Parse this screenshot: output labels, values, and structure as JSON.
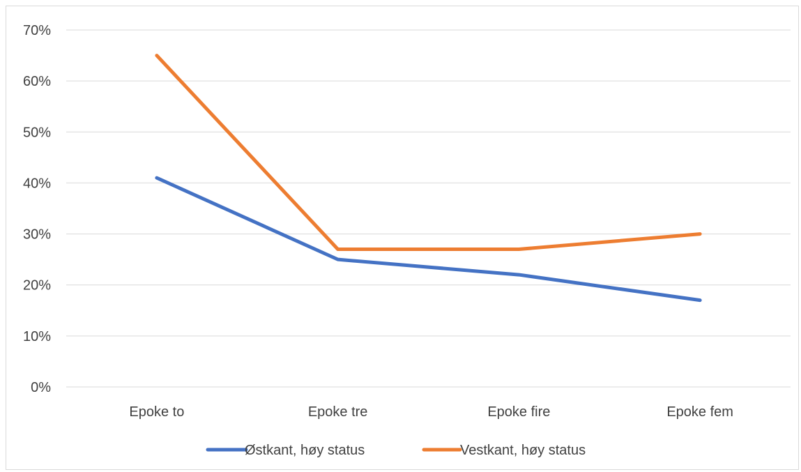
{
  "chart_data": {
    "type": "line",
    "categories": [
      "Epoke to",
      "Epoke tre",
      "Epoke fire",
      "Epoke fem"
    ],
    "series": [
      {
        "name": "Østkant, høy status",
        "values": [
          41,
          25,
          22,
          17
        ],
        "color": "#4472c4"
      },
      {
        "name": "Vestkant, høy status",
        "values": [
          65,
          27,
          27,
          30
        ],
        "color": "#ed7d31"
      }
    ],
    "ylim": [
      0,
      70
    ],
    "yticks": [
      "0%",
      "10%",
      "20%",
      "30%",
      "40%",
      "50%",
      "60%",
      "70%"
    ],
    "grid": true,
    "legend_position": "bottom"
  }
}
